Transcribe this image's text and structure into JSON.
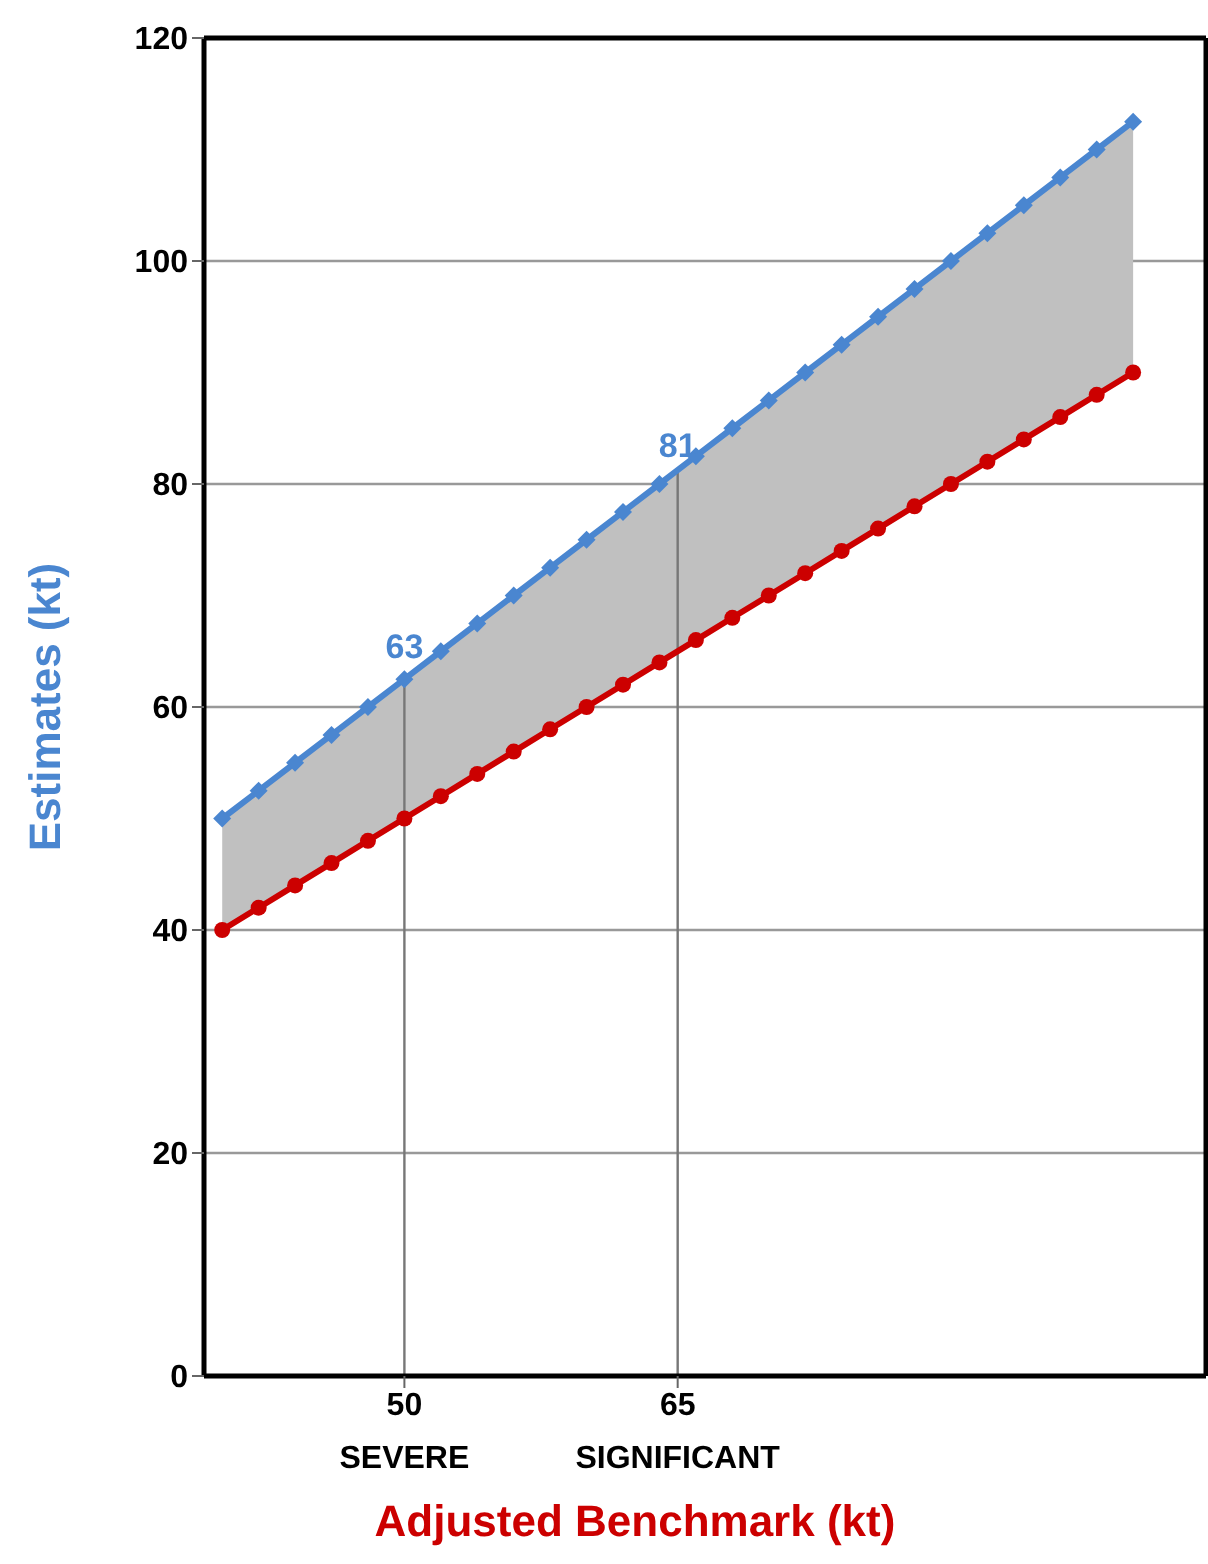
{
  "chart_data": {
    "type": "line",
    "xlabel": "Adjusted Benchmark (kt)",
    "ylabel": "Estimates (kt)",
    "x": [
      40,
      42,
      44,
      46,
      48,
      50,
      52,
      54,
      56,
      58,
      60,
      62,
      64,
      66,
      68,
      70,
      72,
      74,
      76,
      78,
      80,
      82,
      84,
      86,
      88,
      90
    ],
    "series": [
      {
        "color": "#4a86d0",
        "marker": "diamond",
        "values": [
          50,
          52.5,
          55,
          57.5,
          60,
          62.5,
          65,
          67.5,
          70,
          72.5,
          75,
          77.5,
          80,
          82.5,
          85,
          87.5,
          90,
          92.5,
          95,
          97.5,
          100,
          102.5,
          105,
          107.5,
          110,
          112.5
        ],
        "lower": [
          40,
          42,
          44,
          46,
          48,
          50,
          52,
          54,
          56,
          58,
          60,
          62,
          64,
          66,
          68,
          70,
          72,
          74,
          76,
          78,
          80,
          82,
          84,
          86,
          88,
          90
        ],
        "upper": [
          50,
          52.5,
          55,
          57.5,
          60,
          62.5,
          65,
          67.5,
          70,
          72.5,
          75,
          77.5,
          80,
          82.5,
          85,
          87.5,
          90,
          92.5,
          95,
          97.5,
          100,
          102.5,
          105,
          107.5,
          110,
          112.5
        ]
      },
      {
        "color": "#cc0000",
        "marker": "circle",
        "values": [
          40,
          42,
          44,
          46,
          48,
          50,
          52,
          54,
          56,
          58,
          60,
          62,
          64,
          66,
          68,
          70,
          72,
          74,
          76,
          78,
          80,
          82,
          84,
          86,
          88,
          90
        ]
      }
    ],
    "xlim": [
      39,
      94
    ],
    "xticks": [
      50,
      65
    ],
    "ylim": [
      0,
      120
    ],
    "yticks": [
      0,
      20,
      40,
      60,
      80,
      100,
      120
    ],
    "grid": "y",
    "legend": false,
    "ref_lines": [
      {
        "axis": "x",
        "value": 50,
        "label": "SEVERE"
      },
      {
        "axis": "x",
        "value": 65,
        "label": "SIGNIFICANT"
      }
    ],
    "annotations": [
      {
        "text": "63",
        "x": 50,
        "y": 63
      },
      {
        "text": "81",
        "x": 65,
        "y": 81
      }
    ]
  }
}
